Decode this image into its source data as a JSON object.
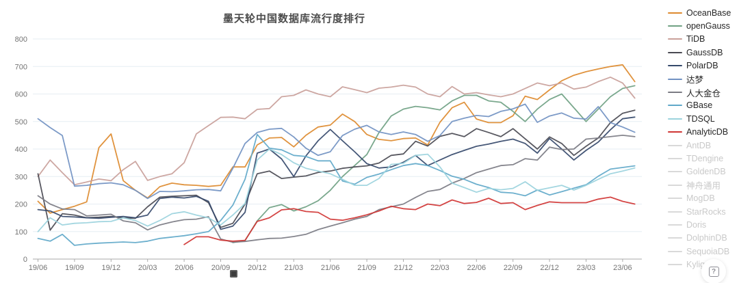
{
  "title": "墨天轮中国数据库流行度排行",
  "help": {
    "icon": "question-mark-icon",
    "glyph": "?"
  },
  "colors": {
    "grid": "#e6edf3",
    "axis": "#aaaaaa",
    "tick_text": "#737373",
    "inactive_swatch": "#d9d9d9"
  },
  "chart_data": {
    "type": "line",
    "title": "墨天轮中国数据库流行度排行",
    "xlabel": "",
    "ylabel": "",
    "ylim": [
      0,
      800
    ],
    "y_ticks": [
      0,
      100,
      200,
      300,
      400,
      500,
      600,
      700,
      800
    ],
    "x_tick_labels": [
      "19/06",
      "19/09",
      "19/12",
      "20/03",
      "20/06",
      "20/09",
      "20/12",
      "21/03",
      "21/06",
      "21/09",
      "21/12",
      "22/03",
      "22/06",
      "22/09",
      "22/12",
      "23/03",
      "23/06"
    ],
    "x_tick_every": 3,
    "n_points": 50,
    "grid": true,
    "legend_position": "right",
    "series": [
      {
        "name": "OceanBase",
        "color": "#dd8a2e",
        "active": true,
        "values": [
          210,
          167,
          180,
          192,
          208,
          405,
          455,
          285,
          250,
          222,
          263,
          276,
          270,
          268,
          264,
          268,
          335,
          335,
          415,
          440,
          442,
          408,
          450,
          480,
          487,
          527,
          500,
          453,
          435,
          430,
          438,
          440,
          415,
          497,
          550,
          570,
          509,
          496,
          496,
          521,
          592,
          580,
          615,
          648,
          668,
          681,
          691,
          700,
          706,
          645
        ]
      },
      {
        "name": "openGauss",
        "color": "#6fa183",
        "active": true,
        "values": [
          null,
          null,
          null,
          null,
          null,
          null,
          null,
          null,
          null,
          null,
          null,
          null,
          null,
          null,
          null,
          null,
          60,
          67,
          139,
          187,
          198,
          175,
          190,
          212,
          250,
          300,
          340,
          380,
          460,
          520,
          545,
          555,
          550,
          542,
          575,
          595,
          595,
          575,
          570,
          537,
          500,
          545,
          580,
          600,
          550,
          500,
          545,
          590,
          620,
          630
        ]
      },
      {
        "name": "TiDB",
        "color": "#c9a09a",
        "active": true,
        "values": [
          300,
          360,
          314,
          270,
          280,
          291,
          285,
          325,
          355,
          286,
          300,
          310,
          350,
          455,
          485,
          515,
          516,
          510,
          544,
          547,
          590,
          595,
          615,
          600,
          590,
          626,
          616,
          605,
          621,
          625,
          632,
          625,
          600,
          590,
          627,
          600,
          605,
          597,
          590,
          600,
          620,
          640,
          630,
          640,
          618,
          625,
          645,
          661,
          640,
          585
        ]
      },
      {
        "name": "GaussDB",
        "color": "#4a4a52",
        "active": true,
        "values": [
          310,
          105,
          165,
          160,
          150,
          152,
          155,
          150,
          148,
          190,
          225,
          228,
          230,
          232,
          205,
          115,
          130,
          200,
          310,
          320,
          293,
          298,
          302,
          315,
          320,
          330,
          335,
          339,
          349,
          377,
          382,
          428,
          411,
          446,
          457,
          445,
          474,
          460,
          445,
          474,
          437,
          400,
          444,
          420,
          377,
          410,
          440,
          496,
          530,
          541
        ]
      },
      {
        "name": "PolarDB",
        "color": "#35496b",
        "active": true,
        "values": [
          180,
          175,
          155,
          153,
          150,
          148,
          152,
          155,
          150,
          160,
          220,
          225,
          222,
          228,
          210,
          108,
          120,
          170,
          385,
          400,
          364,
          300,
          375,
          430,
          471,
          430,
          390,
          347,
          331,
          335,
          352,
          377,
          340,
          360,
          380,
          395,
          410,
          418,
          428,
          436,
          420,
          385,
          438,
          400,
          360,
          395,
          425,
          470,
          510,
          516
        ]
      },
      {
        "name": "达梦",
        "color": "#7191c2",
        "active": true,
        "values": [
          510,
          478,
          449,
          265,
          268,
          274,
          277,
          270,
          250,
          220,
          246,
          245,
          248,
          252,
          253,
          248,
          330,
          420,
          460,
          472,
          475,
          444,
          403,
          377,
          390,
          449,
          472,
          486,
          462,
          453,
          462,
          453,
          428,
          449,
          500,
          512,
          522,
          518,
          537,
          546,
          563,
          497,
          520,
          531,
          512,
          509,
          554,
          496,
          480,
          461
        ]
      },
      {
        "name": "人大金仓",
        "color": "#7b7b83",
        "active": true,
        "values": [
          230,
          200,
          182,
          180,
          157,
          160,
          163,
          139,
          132,
          106,
          124,
          135,
          143,
          145,
          154,
          73,
          61,
          64,
          70,
          75,
          76,
          82,
          90,
          107,
          120,
          132,
          145,
          155,
          180,
          190,
          200,
          224,
          246,
          253,
          276,
          293,
          314,
          327,
          340,
          343,
          365,
          360,
          407,
          398,
          400,
          436,
          440,
          445,
          450,
          445
        ]
      },
      {
        "name": "GBase",
        "color": "#5fa8c9",
        "active": true,
        "values": [
          75,
          65,
          90,
          50,
          55,
          58,
          60,
          62,
          60,
          65,
          75,
          80,
          85,
          92,
          100,
          140,
          196,
          290,
          453,
          403,
          397,
          377,
          373,
          357,
          357,
          284,
          272,
          297,
          309,
          325,
          340,
          347,
          340,
          322,
          301,
          290,
          272,
          260,
          243,
          240,
          230,
          251,
          233,
          245,
          258,
          270,
          301,
          327,
          333,
          339
        ]
      },
      {
        "name": "TDSQL",
        "color": "#9bd3dd",
        "active": true,
        "values": [
          100,
          150,
          124,
          130,
          132,
          136,
          137,
          150,
          140,
          120,
          140,
          165,
          172,
          160,
          150,
          124,
          160,
          202,
          360,
          400,
          380,
          350,
          330,
          320,
          310,
          290,
          268,
          268,
          293,
          344,
          348,
          377,
          381,
          335,
          276,
          260,
          243,
          257,
          252,
          257,
          281,
          250,
          259,
          268,
          251,
          268,
          290,
          310,
          320,
          331
        ]
      },
      {
        "name": "AnalyticDB",
        "color": "#d03534",
        "active": true,
        "values": [
          null,
          null,
          null,
          null,
          null,
          null,
          null,
          null,
          null,
          null,
          null,
          null,
          53,
          81,
          81,
          69,
          65,
          68,
          137,
          150,
          179,
          183,
          173,
          170,
          145,
          141,
          150,
          161,
          175,
          192,
          183,
          180,
          200,
          194,
          215,
          202,
          206,
          221,
          202,
          205,
          180,
          195,
          208,
          205,
          205,
          205,
          218,
          225,
          210,
          200
        ]
      },
      {
        "name": "AntDB",
        "color": "#d9d9d9",
        "active": false,
        "values": []
      },
      {
        "name": "TDengine",
        "color": "#d9d9d9",
        "active": false,
        "values": []
      },
      {
        "name": "GoldenDB",
        "color": "#d9d9d9",
        "active": false,
        "values": []
      },
      {
        "name": "神舟通用",
        "color": "#d9d9d9",
        "active": false,
        "values": []
      },
      {
        "name": "MogDB",
        "color": "#d9d9d9",
        "active": false,
        "values": []
      },
      {
        "name": "StarRocks",
        "color": "#d9d9d9",
        "active": false,
        "values": []
      },
      {
        "name": "Doris",
        "color": "#d9d9d9",
        "active": false,
        "values": []
      },
      {
        "name": "DolphinDB",
        "color": "#d9d9d9",
        "active": false,
        "values": []
      },
      {
        "name": "SequoiaDB",
        "color": "#d9d9d9",
        "active": false,
        "values": []
      },
      {
        "name": "Kyligence",
        "color": "#d9d9d9",
        "active": false,
        "values": []
      }
    ]
  }
}
